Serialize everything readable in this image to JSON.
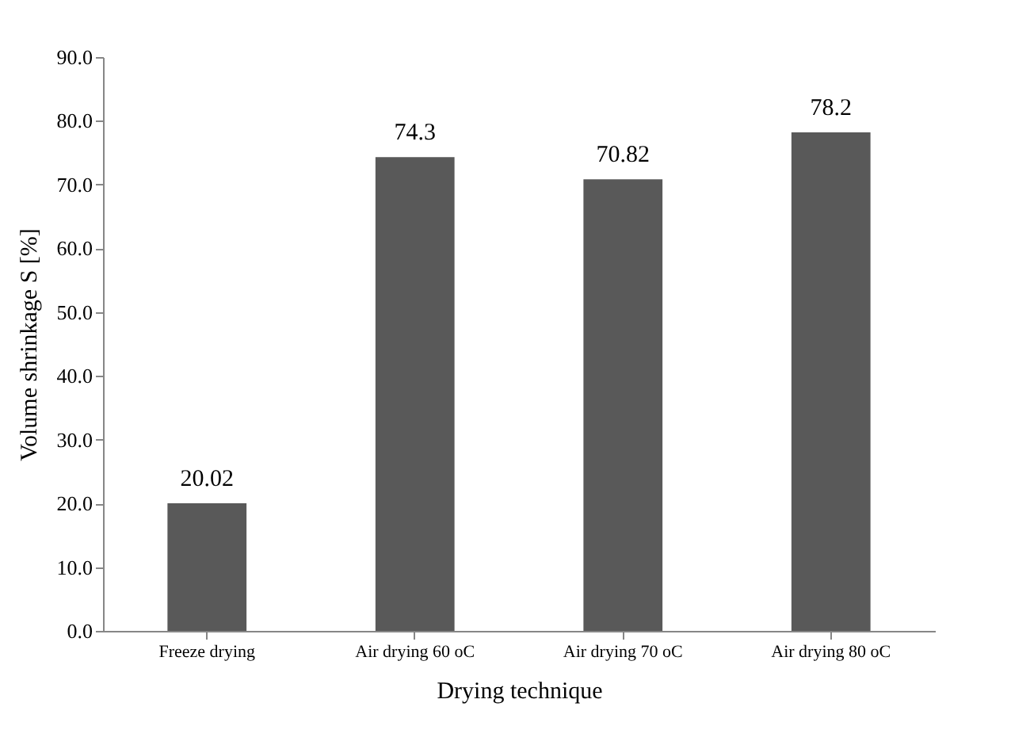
{
  "chart_data": {
    "type": "bar",
    "xlabel": "Drying technique",
    "ylabel": "Volume shrinkage  S  [%]",
    "categories": [
      "Freeze drying",
      "Air drying  60 oC",
      "Air drying  70 oC",
      "Air drying  80 oC"
    ],
    "values": [
      20.02,
      74.3,
      70.82,
      78.2
    ],
    "color": "#595959",
    "data_labels": true,
    "grid": false,
    "ylim": [
      0,
      90
    ],
    "yticks": [
      {
        "value": 0,
        "label": "0.0"
      },
      {
        "value": 10,
        "label": "10.0"
      },
      {
        "value": 20,
        "label": "20.0"
      },
      {
        "value": 30,
        "label": "30.0"
      },
      {
        "value": 40,
        "label": "40.0"
      },
      {
        "value": 50,
        "label": "50.0"
      },
      {
        "value": 60,
        "label": "60.0"
      },
      {
        "value": 70,
        "label": "70.0"
      },
      {
        "value": 80,
        "label": "80.0"
      },
      {
        "value": 90,
        "label": "90.0"
      }
    ]
  }
}
